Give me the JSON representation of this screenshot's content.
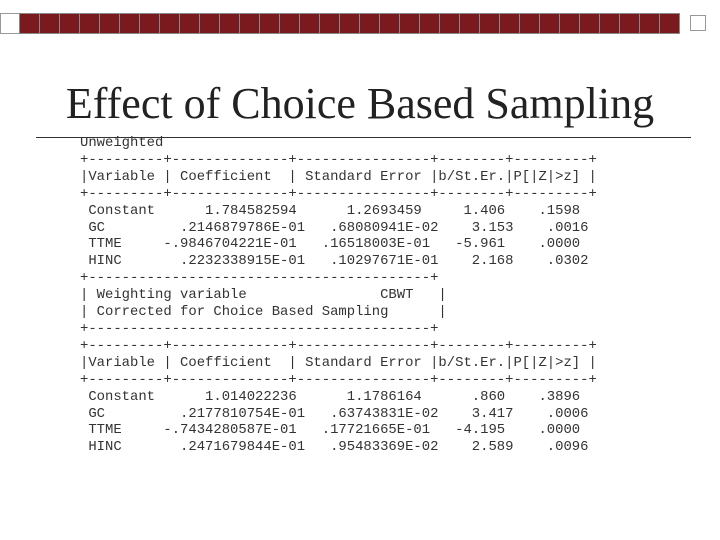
{
  "slide": {
    "title": "Effect of Choice Based Sampling",
    "output_lines": [
      "Unweighted",
      "+---------+--------------+----------------+--------+---------+",
      "|Variable | Coefficient  | Standard Error |b/St.Er.|P[|Z|>z] |",
      "+---------+--------------+----------------+--------+---------+",
      " Constant      1.784582594      1.2693459     1.406    .1598",
      " GC         .2146879786E-01   .68080941E-02    3.153    .0016",
      " TTME     -.9846704221E-01   .16518003E-01   -5.961    .0000",
      " HINC       .2232338915E-01   .10297671E-01    2.168    .0302",
      "+-----------------------------------------+",
      "| Weighting variable                CBWT   |",
      "| Corrected for Choice Based Sampling      |",
      "+-----------------------------------------+",
      "+---------+--------------+----------------+--------+---------+",
      "|Variable | Coefficient  | Standard Error |b/St.Er.|P[|Z|>z] |",
      "+---------+--------------+----------------+--------+---------+",
      " Constant      1.014022236      1.1786164      .860    .3896",
      " GC         .2177810754E-01   .63743831E-02    3.417    .0006",
      " TTME     -.7434280587E-01   .17721665E-01   -4.195    .0000",
      " HINC       .2471679844E-01   .95483369E-02    2.589    .0096"
    ]
  },
  "colors": {
    "accent": "#7a1a1e",
    "text": "#333333"
  }
}
